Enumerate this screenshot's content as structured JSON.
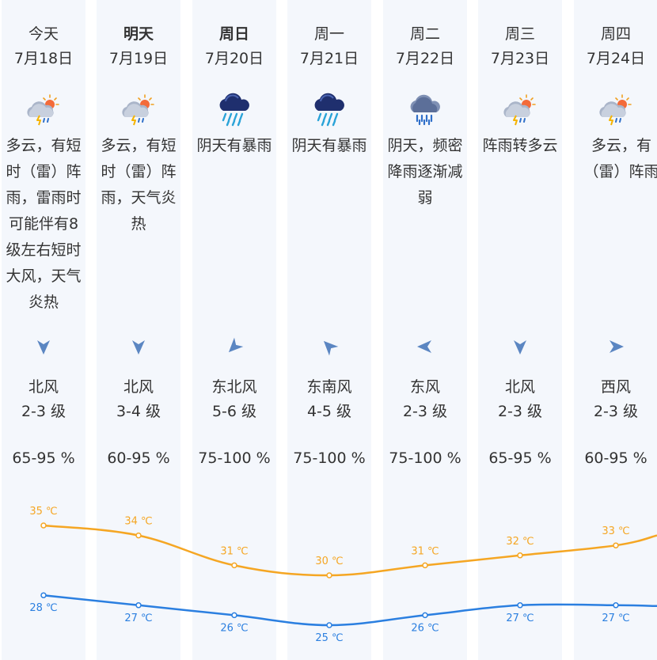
{
  "days": [
    {
      "name": "今天",
      "bold": false,
      "date": "7月18日",
      "icon": "thunder-shower-sun-icon",
      "desc": "多云，有短时（雷）阵雨，雷雨时可能伴有8级左右短时大风，天气炎热",
      "wind_icon": "wind-arrow-north-icon",
      "wind_rot": 180,
      "wind": "北风",
      "wind_level": "2-3 级",
      "humidity": "65-95 %",
      "high": 35,
      "high_label": "35 ℃",
      "low": 28,
      "low_label": "28 ℃"
    },
    {
      "name": "明天",
      "bold": true,
      "date": "7月19日",
      "icon": "thunder-shower-sun-icon",
      "desc": "多云，有短时（雷）阵雨，天气炎热",
      "wind_icon": "wind-arrow-north-icon",
      "wind_rot": 180,
      "wind": "北风",
      "wind_level": "3-4 级",
      "humidity": "60-95 %",
      "high": 34,
      "high_label": "34 ℃",
      "low": 27,
      "low_label": "27 ℃"
    },
    {
      "name": "周日",
      "bold": true,
      "date": "7月20日",
      "icon": "heavy-rain-icon",
      "desc": "阴天有暴雨",
      "wind_icon": "wind-arrow-northeast-icon",
      "wind_rot": 225,
      "wind": "东北风",
      "wind_level": "5-6 级",
      "humidity": "75-100 %",
      "high": 31,
      "high_label": "31 ℃",
      "low": 26,
      "low_label": "26 ℃"
    },
    {
      "name": "周一",
      "bold": false,
      "date": "7月21日",
      "icon": "heavy-rain-icon",
      "desc": "阴天有暴雨",
      "wind_icon": "wind-arrow-southeast-icon",
      "wind_rot": 315,
      "wind": "东南风",
      "wind_level": "4-5 级",
      "humidity": "75-100 %",
      "high": 30,
      "high_label": "30 ℃",
      "low": 25,
      "low_label": "25 ℃"
    },
    {
      "name": "周二",
      "bold": false,
      "date": "7月22日",
      "icon": "rain-icon",
      "desc": "阴天，频密降雨逐渐减弱",
      "wind_icon": "wind-arrow-east-icon",
      "wind_rot": 270,
      "wind": "东风",
      "wind_level": "2-3 级",
      "humidity": "75-100 %",
      "high": 31,
      "high_label": "31 ℃",
      "low": 26,
      "low_label": "26 ℃"
    },
    {
      "name": "周三",
      "bold": false,
      "date": "7月23日",
      "icon": "thunder-shower-sun-icon",
      "desc": "阵雨转多云",
      "wind_icon": "wind-arrow-north-icon",
      "wind_rot": 180,
      "wind": "北风",
      "wind_level": "2-3 级",
      "humidity": "65-95 %",
      "high": 32,
      "high_label": "32 ℃",
      "low": 27,
      "low_label": "27 ℃"
    },
    {
      "name": "周四",
      "bold": false,
      "date": "7月24日",
      "icon": "thunder-shower-sun-icon",
      "desc": "多云，有（雷）阵雨",
      "wind_icon": "wind-arrow-west-icon",
      "wind_rot": 90,
      "wind": "西风",
      "wind_level": "2-3 级",
      "humidity": "60-95 %",
      "high": 33,
      "high_label": "33 ℃",
      "low": 27,
      "low_label": "27 ℃"
    }
  ],
  "colors": {
    "column_bg": "#f4f7fc",
    "high_line": "#f5a623",
    "low_line": "#2b7fe0",
    "wind_arrow": "#5b86c2"
  },
  "chart_data": {
    "type": "line",
    "x": [
      "7月18日",
      "7月19日",
      "7月20日",
      "7月21日",
      "7月22日",
      "7月23日",
      "7月24日"
    ],
    "series": [
      {
        "values": [
          35,
          34,
          31,
          30,
          31,
          32,
          33
        ]
      },
      {
        "values": [
          28,
          27,
          26,
          25,
          26,
          27,
          27
        ]
      }
    ],
    "unit": "℃"
  }
}
